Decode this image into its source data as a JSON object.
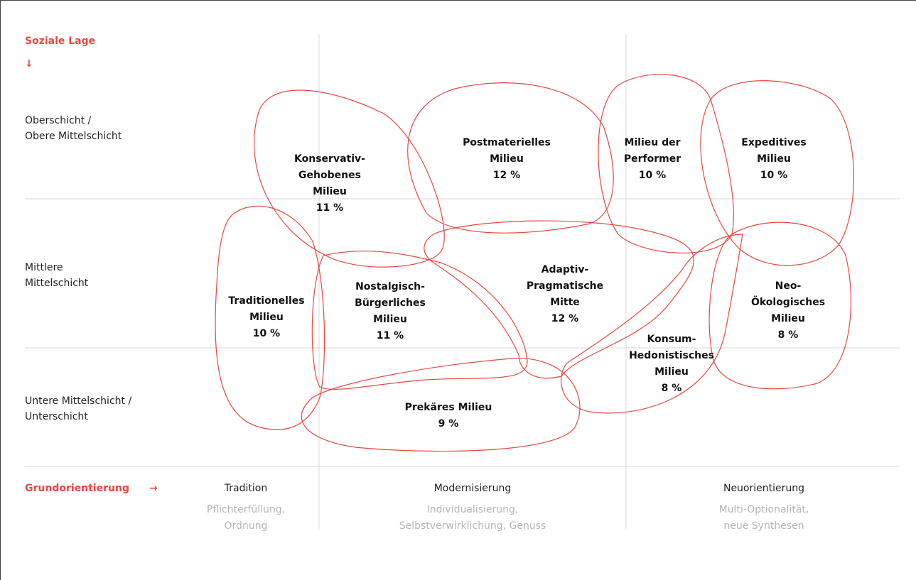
{
  "header": {
    "title": "Soziale Lage",
    "arrow": "↓"
  },
  "rows": [
    [
      "Oberschicht /",
      "Obere Mittelschicht"
    ],
    [
      "Mittlere",
      "Mittelschicht"
    ],
    [
      "Untere Mittelschicht /",
      "Unterschicht"
    ]
  ],
  "milieus": [
    {
      "lines": [
        "Konservativ-",
        "Gehobenes",
        "Milieu"
      ],
      "share": "11 %"
    },
    {
      "lines": [
        "Postmaterielles",
        "Milieu"
      ],
      "share": "12 %"
    },
    {
      "lines": [
        "Milieu der",
        "Performer"
      ],
      "share": "10 %"
    },
    {
      "lines": [
        "Expeditives",
        "Milieu"
      ],
      "share": "10 %"
    },
    {
      "lines": [
        "Traditionelles",
        "Milieu"
      ],
      "share": "10 %"
    },
    {
      "lines": [
        "Nostalgisch-",
        "Bürgerliches",
        "Milieu"
      ],
      "share": "11 %"
    },
    {
      "lines": [
        "Adaptiv-",
        "Pragmatische",
        "Mitte"
      ],
      "share": "12 %"
    },
    {
      "lines": [
        "Neo-",
        "Ökologisches",
        "Milieu"
      ],
      "share": "8 %"
    },
    {
      "lines": [
        "Konsum-",
        "Hedonistisches",
        "Milieu"
      ],
      "share": "8 %"
    },
    {
      "lines": [
        "Prekäres Milieu"
      ],
      "share": "9 %"
    }
  ],
  "footer": {
    "title": "Grundorientierung",
    "arrow": "→",
    "columns": [
      {
        "title": "Tradition",
        "subtitle": [
          "Pflichterfüllung,",
          "Ordnung"
        ]
      },
      {
        "title": "Modernisierung",
        "subtitle": [
          "Individualisierung,",
          "Selbstverwirklichung, Genuss"
        ]
      },
      {
        "title": "Neuorientierung",
        "subtitle": [
          "Multi-Optionalität,",
          "neue Synthesen"
        ]
      }
    ]
  }
}
